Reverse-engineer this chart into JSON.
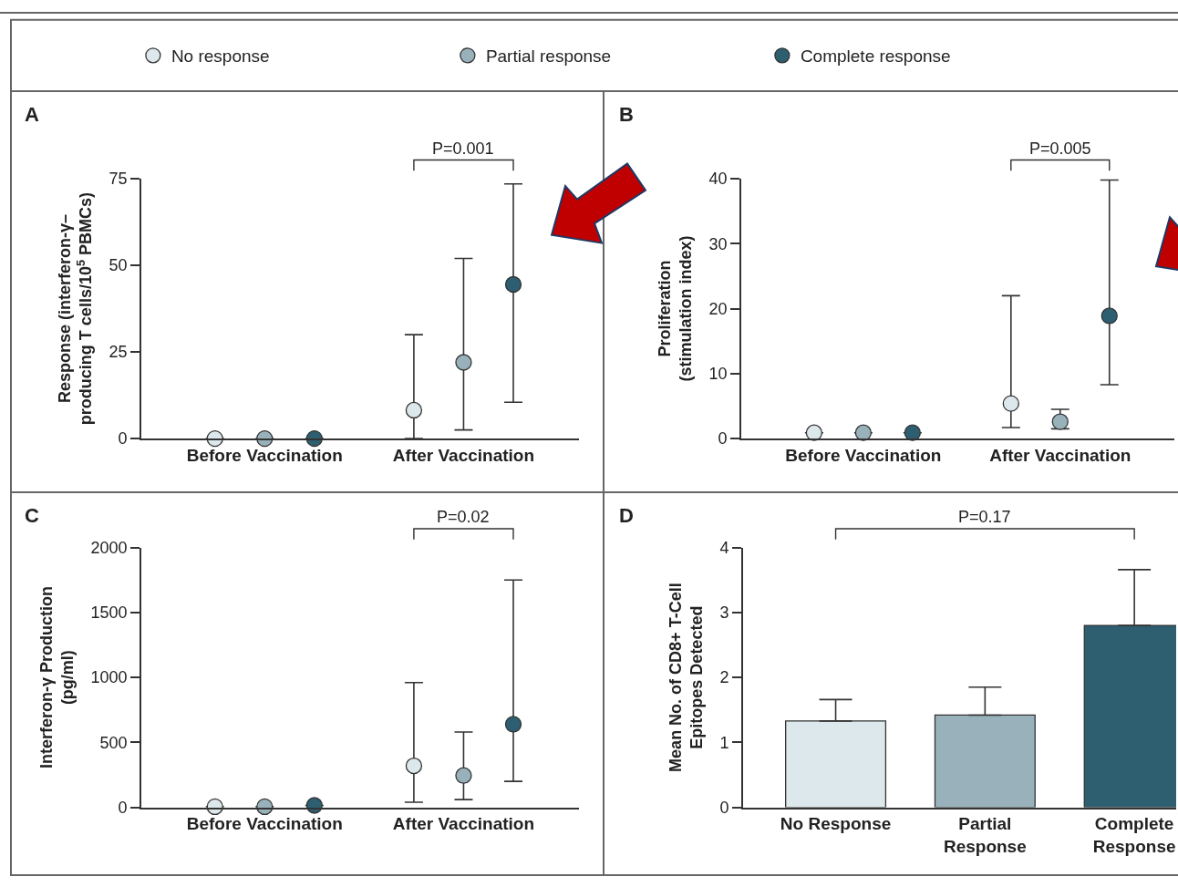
{
  "chart_data": [
    {
      "type": "scatter",
      "title": "A",
      "ylabel": "Response (interferon-γ–\nproducing T cells/10$^{5}$ PBMCs)",
      "categories": [
        "Before Vaccination",
        "After Vaccination"
      ],
      "marker": "circle",
      "legend": "top",
      "ylim": [
        0,
        75
      ],
      "yticks": [
        0,
        25,
        50,
        75
      ],
      "annotations": [
        "P=0.001"
      ],
      "series": [
        {
          "name": "No response",
          "color": "#dde8ec",
          "values": [
            0,
            8.2
          ],
          "errors": [
            null,
            [
              0,
              30
            ]
          ]
        },
        {
          "name": "Partial response",
          "color": "#98b1bb",
          "values": [
            0,
            22
          ],
          "errors": [
            null,
            [
              2.5,
              52
            ]
          ]
        },
        {
          "name": "Complete response",
          "color": "#2d5f70",
          "values": [
            0,
            44.5
          ],
          "errors": [
            null,
            [
              10.5,
              73.5
            ]
          ]
        }
      ]
    },
    {
      "type": "scatter",
      "title": "B",
      "ylabel": "Proliferation\n(stimulation index)",
      "categories": [
        "Before Vaccination",
        "After Vaccination"
      ],
      "marker": "circle",
      "ylim": [
        0,
        40
      ],
      "yticks": [
        0,
        10,
        20,
        30,
        40
      ],
      "annotations": [
        "P=0.005"
      ],
      "series": [
        {
          "color": "#dde8ec",
          "values": [
            0.9,
            5.4
          ],
          "errors": [
            null,
            [
              1.7,
              22
            ]
          ]
        },
        {
          "color": "#98b1bb",
          "values": [
            0.9,
            2.6
          ],
          "errors": [
            null,
            [
              1.5,
              4.5
            ]
          ]
        },
        {
          "color": "#2d5f70",
          "values": [
            0.9,
            18.9
          ],
          "errors": [
            null,
            [
              8.3,
              39.8
            ]
          ]
        }
      ]
    },
    {
      "type": "scatter",
      "title": "C",
      "ylabel": "Interferon-γ Production\n(pg/ml)",
      "categories": [
        "Before Vaccination",
        "After Vaccination"
      ],
      "marker": "circle",
      "ylim": [
        0,
        2000
      ],
      "yticks": [
        0,
        500,
        1000,
        1500,
        2000
      ],
      "annotations": [
        "P=0.02"
      ],
      "series": [
        {
          "color": "#dde8ec",
          "values": [
            5,
            320
          ],
          "errors": [
            null,
            [
              40,
              960
            ]
          ]
        },
        {
          "color": "#98b1bb",
          "values": [
            5,
            245
          ],
          "errors": [
            null,
            [
              60,
              580
            ]
          ]
        },
        {
          "color": "#2d5f70",
          "values": [
            15,
            640
          ],
          "errors": [
            null,
            [
              200,
              1750
            ]
          ]
        }
      ]
    },
    {
      "type": "bar",
      "title": "D",
      "ylabel": "Mean No. of CD8+ T-Cell\nEpitopes Detected",
      "categories": [
        "No Response",
        "Partial\nResponse",
        "Complete\nResponse"
      ],
      "values": [
        1.33,
        1.42,
        2.8
      ],
      "colors": [
        "#dde8ec",
        "#98b1bb",
        "#2d5f70"
      ],
      "errors": [
        [
          1.33,
          1.66
        ],
        [
          1.42,
          1.85
        ],
        [
          2.8,
          3.66
        ]
      ],
      "ylim": [
        0,
        4
      ],
      "yticks": [
        0,
        1,
        2,
        3,
        4
      ],
      "annotations": [
        "P=0.17"
      ]
    }
  ]
}
